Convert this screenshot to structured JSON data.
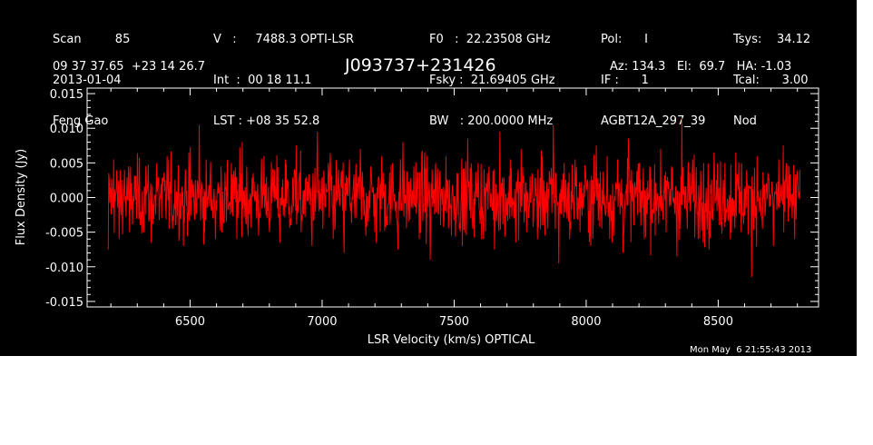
{
  "header": {
    "col1": [
      "Scan         85",
      "2013-01-04",
      "Feng Gao"
    ],
    "col2": [
      "V   :     7488.3 OPTI-LSR",
      "Int  :  00 18 11.1",
      "LST : +08 35 52.8"
    ],
    "col3": [
      "F0   :  22.23508 GHz",
      "Fsky :  21.69405 GHz",
      "BW   : 200.0000 MHz"
    ],
    "col4": [
      "Pol:      I",
      "IF :      1",
      "AGBT12A_297_39"
    ],
    "col5": [
      "Tsys:    34.12",
      "Tcal:      3.00",
      "Nod"
    ],
    "coords": "09 37 37.65  +23 14 26.7",
    "object": "J093737+231426",
    "pointing": "Az: 134.3   El:  69.7   HA: -1.03",
    "timestamp": "Mon May  6 21:55:43 2013"
  },
  "colors": {
    "background": "#000000",
    "axes": "#ffffff",
    "trace": "#ff0000"
  },
  "chart_data": {
    "type": "line",
    "xlabel": "LSR Velocity (km/s) OPTICAL",
    "ylabel": "Flux Density (Jy)",
    "xlim": [
      6110,
      8880
    ],
    "ylim": [
      -0.0158,
      0.0158
    ],
    "xticks": [
      6500,
      7000,
      7500,
      8000,
      8500
    ],
    "xtick_labels": [
      "6500",
      "7000",
      "7500",
      "8000",
      "8500"
    ],
    "yticks": [
      -0.015,
      -0.01,
      -0.005,
      0.0,
      0.005,
      0.01,
      0.015
    ],
    "ytick_labels": [
      "-0.015",
      "-0.010",
      "-0.005",
      "0.000",
      "0.005",
      "0.010",
      "0.015"
    ],
    "grid": false,
    "series": [
      {
        "x_range": [
          6190,
          8810
        ],
        "noise_rms_approx": 0.0033,
        "values": [
          -0.0075,
          0.0055,
          -0.006,
          0.004,
          -0.005,
          0.003,
          -0.004,
          0.0045,
          -0.0065,
          0.005,
          -0.003,
          0.006,
          -0.0045,
          0.002,
          -0.007,
          0.0065,
          -0.0025,
          0.0105,
          -0.005,
          0.003,
          -0.006,
          0.0045,
          -0.0035,
          0.005,
          -0.006,
          0.008,
          -0.004,
          0.0035,
          -0.0055,
          0.006,
          -0.003,
          0.004,
          -0.0065,
          0.0055,
          -0.004,
          0.0075,
          -0.005,
          0.003,
          -0.007,
          0.0095,
          -0.0045,
          0.005,
          -0.006,
          0.004,
          -0.008,
          0.0055,
          -0.003,
          0.007,
          -0.0055,
          0.0045,
          -0.0065,
          0.006,
          -0.004,
          0.005,
          -0.0075,
          0.008,
          -0.0035,
          0.0045,
          -0.006,
          0.0065,
          -0.009,
          0.005,
          -0.004,
          0.006,
          -0.0055,
          0.0035,
          -0.007,
          0.0085,
          -0.0045,
          0.005,
          -0.006,
          0.0045,
          -0.0075,
          0.0095,
          -0.004,
          0.0055,
          -0.0065,
          0.007,
          -0.005,
          0.0035,
          -0.006,
          0.006,
          -0.0045,
          0.0105,
          -0.0095,
          0.005,
          -0.006,
          0.0055,
          -0.005,
          0.004,
          -0.007,
          0.0075,
          -0.0045,
          0.006,
          -0.0065,
          0.0055,
          -0.008,
          0.0085,
          -0.004,
          0.005,
          -0.006,
          0.0045,
          -0.0055,
          0.007,
          -0.005,
          0.0045,
          -0.0085,
          0.0115,
          -0.0045,
          0.0055,
          -0.006,
          0.005,
          -0.0075,
          0.0065,
          -0.004,
          0.005,
          -0.006,
          0.0065,
          -0.005,
          0.004,
          -0.0115,
          0.006,
          -0.0045,
          0.0035,
          -0.007,
          0.0055,
          -0.005,
          0.0045,
          -0.006,
          0.004
        ]
      }
    ]
  }
}
